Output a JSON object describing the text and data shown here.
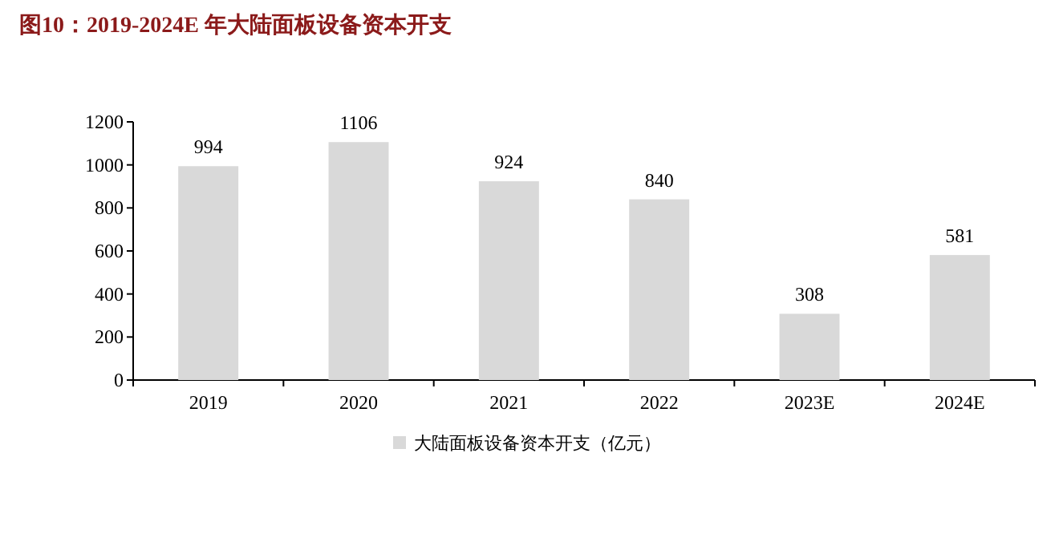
{
  "chart_data": {
    "type": "bar",
    "title": "图10：2019-2024E 年大陆面板设备资本开支",
    "categories": [
      "2019",
      "2020",
      "2021",
      "2022",
      "2023E",
      "2024E"
    ],
    "series": [
      {
        "name": "大陆面板设备资本开支（亿元）",
        "color": "#d9d9d9",
        "values": [
          994,
          1106,
          924,
          840,
          308,
          581
        ]
      }
    ],
    "ylim": [
      0,
      1200
    ],
    "yticks": [
      0,
      200,
      400,
      600,
      800,
      1000,
      1200
    ],
    "data_labels": true,
    "legend": "bottom",
    "grid": false
  }
}
